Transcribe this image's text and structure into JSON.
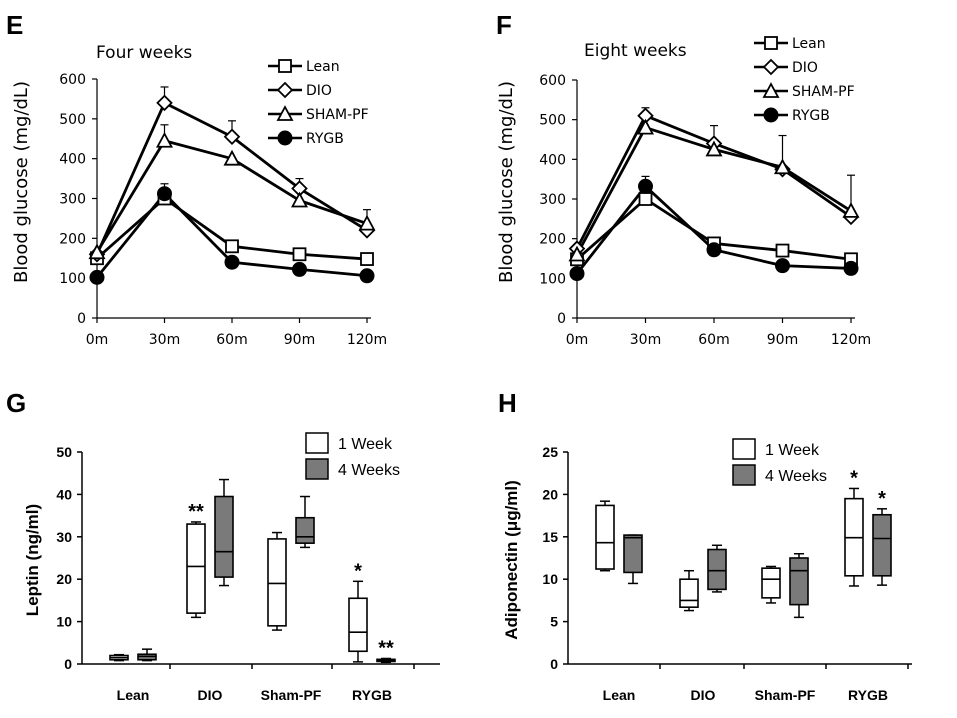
{
  "chart_data": [
    {
      "panel": "E",
      "type": "line",
      "title": "Four weeks",
      "ylabel": "Blood glucose (mg/dL)",
      "xlabel": "",
      "x": [
        "0m",
        "30m",
        "60m",
        "90m",
        "120m"
      ],
      "ylim": [
        0,
        600
      ],
      "yticks": [
        "0",
        "100",
        "200",
        "300",
        "400",
        "500",
        "600"
      ],
      "grid": false,
      "legend_position": "top-right",
      "series": [
        {
          "name": "Lean",
          "marker": "square-open",
          "values": [
            150,
            300,
            180,
            160,
            148
          ],
          "errors": [
            0,
            0,
            0,
            0,
            0
          ]
        },
        {
          "name": "DIO",
          "marker": "diamond-open",
          "values": [
            160,
            540,
            455,
            325,
            220
          ],
          "errors": [
            0,
            40,
            40,
            25,
            0
          ]
        },
        {
          "name": "SHAM-PF",
          "marker": "triangle-open",
          "values": [
            165,
            445,
            400,
            295,
            237
          ],
          "errors": [
            0,
            40,
            0,
            0,
            35
          ]
        },
        {
          "name": "RYGB",
          "marker": "circle-filled",
          "values": [
            102,
            312,
            140,
            122,
            106
          ],
          "errors": [
            0,
            25,
            0,
            0,
            0
          ]
        }
      ]
    },
    {
      "panel": "F",
      "type": "line",
      "title": "Eight weeks",
      "ylabel": "Blood glucose (mg/dL)",
      "xlabel": "",
      "x": [
        "0m",
        "30m",
        "60m",
        "90m",
        "120m"
      ],
      "ylim": [
        0,
        600
      ],
      "yticks": [
        "0",
        "100",
        "200",
        "300",
        "400",
        "500",
        "600"
      ],
      "grid": false,
      "legend_position": "top-right",
      "series": [
        {
          "name": "Lean",
          "marker": "square-open",
          "values": [
            148,
            300,
            188,
            170,
            148
          ],
          "errors": [
            0,
            0,
            0,
            0,
            0
          ]
        },
        {
          "name": "DIO",
          "marker": "diamond-open",
          "values": [
            175,
            510,
            440,
            375,
            255
          ],
          "errors": [
            0,
            20,
            45,
            0,
            0
          ]
        },
        {
          "name": "SHAM-PF",
          "marker": "triangle-open",
          "values": [
            160,
            480,
            425,
            380,
            270
          ],
          "errors": [
            0,
            0,
            0,
            80,
            90
          ]
        },
        {
          "name": "RYGB",
          "marker": "circle-filled",
          "values": [
            112,
            332,
            172,
            132,
            125
          ],
          "errors": [
            0,
            25,
            0,
            0,
            0
          ]
        }
      ]
    },
    {
      "panel": "G",
      "type": "box",
      "ylabel": "Leptin (ng/ml)",
      "xlabel": "",
      "categories": [
        "Lean",
        "DIO",
        "Sham-PF",
        "RYGB"
      ],
      "ylim": [
        0,
        50
      ],
      "yticks": [
        "0",
        "10",
        "20",
        "30",
        "40",
        "50"
      ],
      "grid": false,
      "legend_position": "top-right",
      "series": [
        {
          "name": "1 Week",
          "fill": "#ffffff",
          "boxes": [
            {
              "min": 0.8,
              "q1": 1.0,
              "median": 1.5,
              "q3": 2.0,
              "max": 2.2
            },
            {
              "min": 11,
              "q1": 12,
              "median": 23,
              "q3": 33,
              "max": 33.5
            },
            {
              "min": 8,
              "q1": 9,
              "median": 19,
              "q3": 29.5,
              "max": 31
            },
            {
              "min": 0.5,
              "q1": 3,
              "median": 7.5,
              "q3": 15.5,
              "max": 19.5
            }
          ]
        },
        {
          "name": "4 Weeks",
          "fill": "#7a7a7a",
          "boxes": [
            {
              "min": 0.8,
              "q1": 1.0,
              "median": 1.8,
              "q3": 2.3,
              "max": 3.5
            },
            {
              "min": 18.5,
              "q1": 20.5,
              "median": 26.5,
              "q3": 39.5,
              "max": 43.5
            },
            {
              "min": 27.5,
              "q1": 28.5,
              "median": 30,
              "q3": 34.5,
              "max": 39.5
            },
            {
              "min": 0.4,
              "q1": 0.6,
              "median": 0.9,
              "q3": 1.1,
              "max": 1.3
            }
          ]
        }
      ],
      "annotations": [
        {
          "category": "DIO",
          "series": "1 Week",
          "text": "**"
        },
        {
          "category": "RYGB",
          "series": "1 Week",
          "text": "*"
        },
        {
          "category": "RYGB",
          "series": "4 Weeks",
          "text": "**"
        }
      ]
    },
    {
      "panel": "H",
      "type": "box",
      "ylabel": "Adiponectin (μg/ml)",
      "xlabel": "",
      "categories": [
        "Lean",
        "DIO",
        "Sham-PF",
        "RYGB"
      ],
      "ylim": [
        0,
        25
      ],
      "yticks": [
        "0",
        "5",
        "10",
        "15",
        "20",
        "25"
      ],
      "grid": false,
      "legend_position": "top-right",
      "series": [
        {
          "name": "1 Week",
          "fill": "#ffffff",
          "boxes": [
            {
              "min": 11.0,
              "q1": 11.2,
              "median": 14.3,
              "q3": 18.7,
              "max": 19.2
            },
            {
              "min": 6.3,
              "q1": 6.7,
              "median": 7.5,
              "q3": 10.0,
              "max": 11.0
            },
            {
              "min": 7.2,
              "q1": 7.8,
              "median": 10.0,
              "q3": 11.3,
              "max": 11.5
            },
            {
              "min": 9.2,
              "q1": 10.4,
              "median": 14.9,
              "q3": 19.5,
              "max": 20.7
            }
          ]
        },
        {
          "name": "4 Weeks",
          "fill": "#7a7a7a",
          "boxes": [
            {
              "min": 9.5,
              "q1": 10.8,
              "median": 14.9,
              "q3": 15.2,
              "max": 15.2
            },
            {
              "min": 8.5,
              "q1": 8.8,
              "median": 11.0,
              "q3": 13.5,
              "max": 14.0
            },
            {
              "min": 5.5,
              "q1": 7.0,
              "median": 11.0,
              "q3": 12.5,
              "max": 13.0
            },
            {
              "min": 9.3,
              "q1": 10.4,
              "median": 14.8,
              "q3": 17.6,
              "max": 18.3
            }
          ]
        }
      ],
      "annotations": [
        {
          "category": "RYGB",
          "series": "1 Week",
          "text": "*"
        },
        {
          "category": "RYGB",
          "series": "4 Weeks",
          "text": "*"
        }
      ]
    }
  ]
}
